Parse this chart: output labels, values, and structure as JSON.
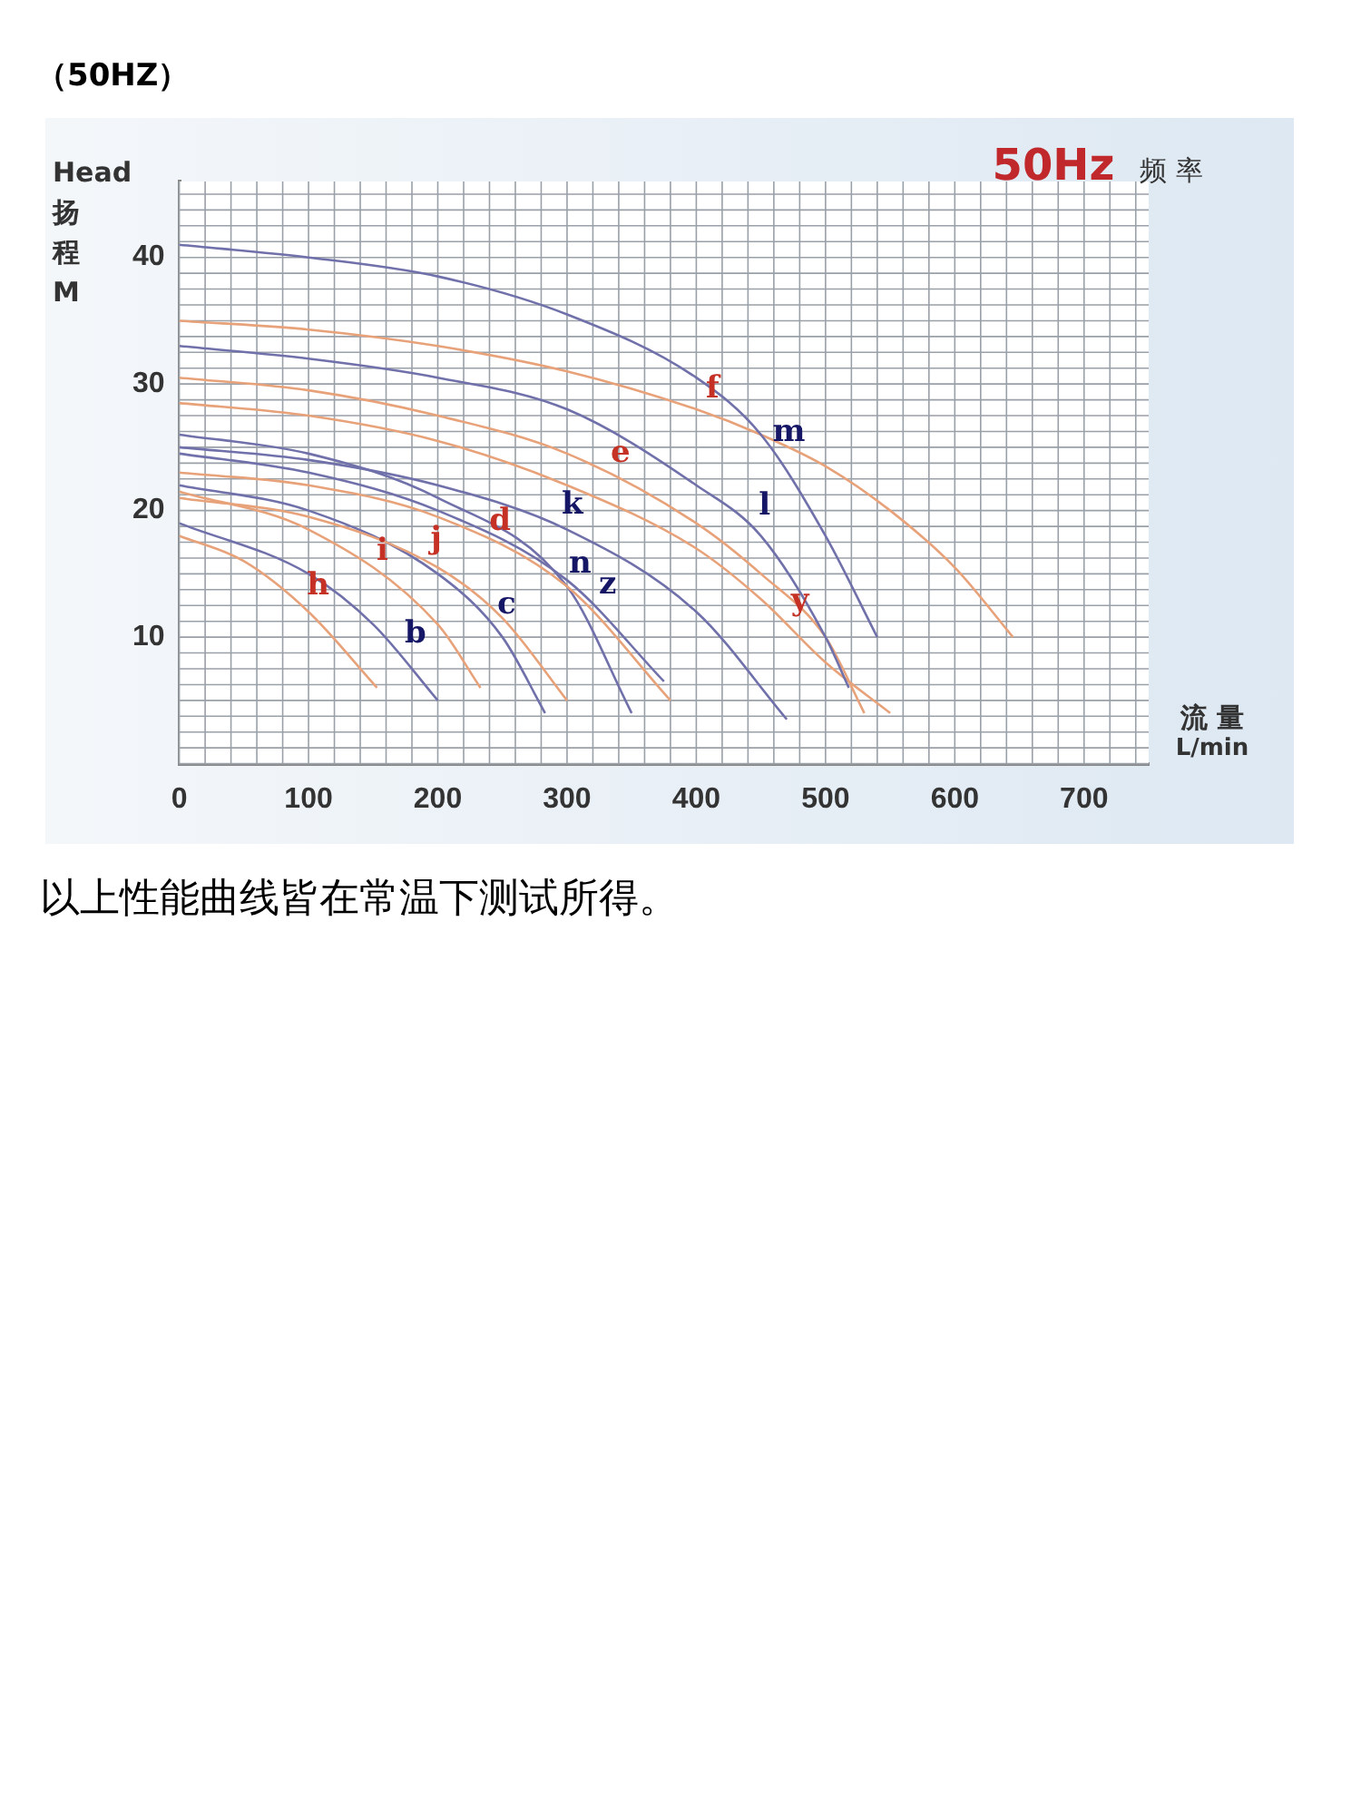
{
  "chart_data": {
    "type": "line",
    "title": "（50HZ）",
    "xlabel": "流 量 L/min",
    "ylabel": "Head扬程M",
    "xlim": [
      0,
      750
    ],
    "xticks": [
      0,
      100,
      200,
      300,
      400,
      500,
      600,
      700
    ],
    "ylim": [
      0,
      46
    ],
    "yticks": [
      10,
      20,
      30,
      40
    ],
    "grid": true,
    "legend": false,
    "marker": "none",
    "line_style": "solid",
    "series": [
      {
        "type": "line",
        "name": "m",
        "color": "#7070aa",
        "x": [
          0,
          100,
          200,
          300,
          400,
          450,
          500,
          540
        ],
        "values": [
          41,
          40,
          38.5,
          35.5,
          30.5,
          26,
          18,
          10
        ]
      },
      {
        "type": "line",
        "name": "f",
        "color": "#e8a27a",
        "x": [
          0,
          100,
          200,
          300,
          400,
          450,
          500,
          550,
          600,
          645
        ],
        "values": [
          35,
          34.3,
          33,
          31,
          28,
          26,
          23.5,
          20,
          15.5,
          10
        ]
      },
      {
        "type": "line",
        "name": "l",
        "color": "#7070aa",
        "x": [
          0,
          100,
          200,
          300,
          400,
          450,
          500,
          518
        ],
        "values": [
          33,
          32,
          30.5,
          28,
          22,
          18,
          10,
          6
        ]
      },
      {
        "type": "line",
        "name": "e",
        "color": "#e8a27a",
        "x": [
          0,
          100,
          200,
          300,
          400,
          450,
          500,
          530
        ],
        "values": [
          30.5,
          29.5,
          27.5,
          24.5,
          19,
          15,
          10,
          4
        ]
      },
      {
        "type": "line",
        "name": "y",
        "color": "#e8a27a",
        "x": [
          0,
          100,
          200,
          300,
          400,
          450,
          500,
          550
        ],
        "values": [
          28.5,
          27.5,
          25.5,
          22,
          17,
          13,
          8,
          4
        ]
      },
      {
        "type": "line",
        "name": "k",
        "color": "#7070aa",
        "x": [
          0,
          100,
          200,
          300,
          400,
          470
        ],
        "values": [
          25,
          24,
          22,
          18.5,
          12,
          3.5
        ]
      },
      {
        "type": "line",
        "name": "z",
        "color": "#7070aa",
        "x": [
          0,
          100,
          200,
          300,
          375
        ],
        "values": [
          24.5,
          23,
          20,
          14.5,
          6.5
        ]
      },
      {
        "type": "line",
        "name": "d",
        "color": "#e8a27a",
        "x": [
          0,
          100,
          200,
          300,
          380
        ],
        "values": [
          23,
          22,
          19.5,
          14,
          5
        ]
      },
      {
        "type": "line",
        "name": "n",
        "color": "#7070aa",
        "x": [
          0,
          100,
          200,
          300,
          350
        ],
        "values": [
          26,
          24.5,
          21,
          14,
          4
        ]
      },
      {
        "type": "line",
        "name": "j",
        "color": "#e8a27a",
        "x": [
          0,
          100,
          200,
          250,
          300
        ],
        "values": [
          21,
          19.5,
          15.5,
          11.5,
          5
        ]
      },
      {
        "type": "line",
        "name": "c",
        "color": "#7070aa",
        "x": [
          0,
          100,
          200,
          250,
          283
        ],
        "values": [
          22,
          20,
          15,
          10,
          4
        ]
      },
      {
        "type": "line",
        "name": "i",
        "color": "#e8a27a",
        "x": [
          0,
          100,
          200,
          233
        ],
        "values": [
          21.5,
          18.5,
          11,
          6
        ]
      },
      {
        "type": "line",
        "name": "b",
        "color": "#7070aa",
        "x": [
          0,
          100,
          150,
          200
        ],
        "values": [
          19,
          15,
          11,
          5
        ]
      },
      {
        "type": "line",
        "name": "h",
        "color": "#e8a27a",
        "x": [
          0,
          50,
          100,
          153
        ],
        "values": [
          18,
          16,
          12,
          6
        ]
      }
    ],
    "annotations": [
      "50Hz 频 率",
      "以上性能曲线皆在常温下测试所得。"
    ]
  }
}
